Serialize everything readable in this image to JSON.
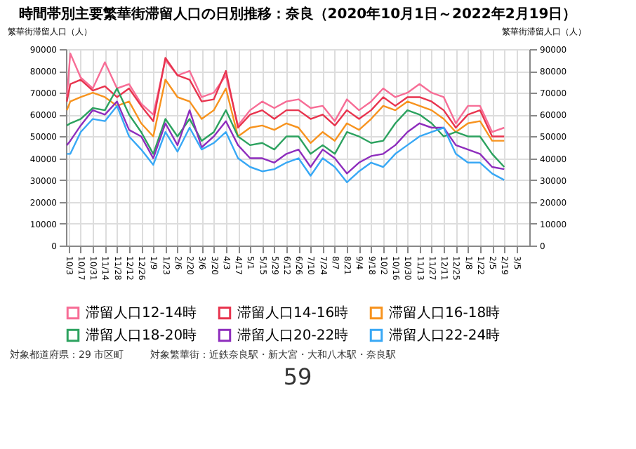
{
  "chart_data": {
    "type": "line",
    "title": "時間帯別主要繁華街滞留人口の日別推移：奈良（2020年10月1日～2022年2月19日）",
    "ylabel": "繁華街滞留人口（人）",
    "y2label": "繁華街滞留人口（人）",
    "x": [
      "2020-10-01",
      "2020-10-05",
      "2020-10-17",
      "2020-10-31",
      "2020-11-14",
      "2020-11-28",
      "2020-12-12",
      "2020-12-26",
      "2021-01-09",
      "2021-01-23",
      "2021-02-06",
      "2021-02-20",
      "2021-03-06",
      "2021-03-20",
      "2021-04-03",
      "2021-04-17",
      "2021-05-01",
      "2021-05-15",
      "2021-05-29",
      "2021-06-12",
      "2021-06-26",
      "2021-07-10",
      "2021-07-24",
      "2021-08-07",
      "2021-08-21",
      "2021-09-04",
      "2021-09-18",
      "2021-10-02",
      "2021-10-16",
      "2021-10-30",
      "2021-11-13",
      "2021-11-27",
      "2021-12-11",
      "2021-12-25",
      "2022-01-08",
      "2022-01-22",
      "2022-02-05",
      "2022-02-19"
    ],
    "series": [
      {
        "name": "滞留人口12-14時",
        "color": "#f76d96",
        "values": [
          68000,
          88000,
          77000,
          72000,
          84000,
          72000,
          74000,
          65000,
          60000,
          85000,
          78000,
          80000,
          68000,
          70000,
          78000,
          55000,
          62000,
          66000,
          63000,
          66000,
          67000,
          63000,
          64000,
          57000,
          67000,
          62000,
          66000,
          72000,
          68000,
          70000,
          74000,
          70000,
          68000,
          56000,
          64000,
          64000,
          52000,
          54000
        ]
      },
      {
        "name": "滞留人口14-16時",
        "color": "#e8344e",
        "values": [
          66000,
          74000,
          76000,
          71000,
          73000,
          68000,
          72000,
          64000,
          57000,
          86000,
          78000,
          76000,
          66000,
          67000,
          80000,
          54000,
          60000,
          62000,
          58000,
          62000,
          62000,
          58000,
          60000,
          55000,
          62000,
          58000,
          62000,
          68000,
          64000,
          68000,
          68000,
          66000,
          62000,
          54000,
          60000,
          62000,
          50000,
          50000
        ]
      },
      {
        "name": "滞留人口16-18時",
        "color": "#f7931e",
        "values": [
          62000,
          66000,
          68000,
          70000,
          68000,
          64000,
          66000,
          56000,
          50000,
          76000,
          68000,
          66000,
          58000,
          62000,
          72000,
          50000,
          54000,
          55000,
          53000,
          56000,
          54000,
          47000,
          52000,
          48000,
          56000,
          53000,
          58000,
          64000,
          62000,
          66000,
          64000,
          62000,
          58000,
          52000,
          56000,
          57000,
          48000,
          48000
        ]
      },
      {
        "name": "滞留人口18-20時",
        "color": "#2ca25f",
        "values": [
          55000,
          56000,
          58000,
          63000,
          62000,
          72000,
          60000,
          52000,
          42000,
          58000,
          50000,
          58000,
          48000,
          52000,
          62000,
          50000,
          46000,
          47000,
          44000,
          50000,
          50000,
          42000,
          46000,
          42000,
          52000,
          50000,
          47000,
          48000,
          56000,
          62000,
          60000,
          56000,
          50000,
          52000,
          50000,
          50000,
          42000,
          36000
        ]
      },
      {
        "name": "滞留人口20-22時",
        "color": "#8e2dbd",
        "values": [
          46000,
          48000,
          55000,
          62000,
          60000,
          66000,
          53000,
          50000,
          40000,
          56000,
          46000,
          62000,
          45000,
          50000,
          57000,
          46000,
          40000,
          40000,
          38000,
          42000,
          44000,
          36000,
          44000,
          40000,
          33000,
          38000,
          41000,
          42000,
          46000,
          52000,
          56000,
          54000,
          54000,
          46000,
          44000,
          42000,
          36000,
          35000
        ]
      },
      {
        "name": "滞留人口22-24時",
        "color": "#38a8f5",
        "values": [
          42000,
          42000,
          52000,
          58000,
          57000,
          64000,
          50000,
          44000,
          37000,
          52000,
          43000,
          54000,
          44000,
          47000,
          52000,
          40000,
          36000,
          34000,
          35000,
          38000,
          40000,
          32000,
          40000,
          36000,
          29000,
          34000,
          38000,
          36000,
          42000,
          46000,
          50000,
          52000,
          54000,
          42000,
          38000,
          38000,
          33000,
          30000
        ]
      }
    ],
    "xlim": [
      "2020-09-30",
      "2022-03-20"
    ],
    "xticks": [
      {
        "value": "2020-10-03",
        "label": "10/3"
      },
      {
        "value": "2020-10-17",
        "label": "10/17"
      },
      {
        "value": "2020-10-31",
        "label": "10/31"
      },
      {
        "value": "2020-11-14",
        "label": "11/14"
      },
      {
        "value": "2020-11-28",
        "label": "11/28"
      },
      {
        "value": "2020-12-12",
        "label": "12/12"
      },
      {
        "value": "2020-12-26",
        "label": "12/26"
      },
      {
        "value": "2021-01-09",
        "label": "1/9"
      },
      {
        "value": "2021-01-23",
        "label": "1/23"
      },
      {
        "value": "2021-02-06",
        "label": "2/6"
      },
      {
        "value": "2021-02-20",
        "label": "2/20"
      },
      {
        "value": "2021-03-06",
        "label": "3/6"
      },
      {
        "value": "2021-03-20",
        "label": "3/20"
      },
      {
        "value": "2021-04-03",
        "label": "4/3"
      },
      {
        "value": "2021-04-17",
        "label": "4/17"
      },
      {
        "value": "2021-05-01",
        "label": "5/1"
      },
      {
        "value": "2021-05-15",
        "label": "5/15"
      },
      {
        "value": "2021-05-29",
        "label": "5/29"
      },
      {
        "value": "2021-06-12",
        "label": "6/12"
      },
      {
        "value": "2021-06-26",
        "label": "6/26"
      },
      {
        "value": "2021-07-10",
        "label": "7/10"
      },
      {
        "value": "2021-07-24",
        "label": "7/24"
      },
      {
        "value": "2021-08-07",
        "label": "8/7"
      },
      {
        "value": "2021-08-21",
        "label": "8/21"
      },
      {
        "value": "2021-09-04",
        "label": "9/4"
      },
      {
        "value": "2021-09-18",
        "label": "9/18"
      },
      {
        "value": "2021-10-02",
        "label": "10/2"
      },
      {
        "value": "2021-10-16",
        "label": "10/16"
      },
      {
        "value": "2021-10-30",
        "label": "10/30"
      },
      {
        "value": "2021-11-13",
        "label": "11/13"
      },
      {
        "value": "2021-11-27",
        "label": "11/27"
      },
      {
        "value": "2021-12-11",
        "label": "12/11"
      },
      {
        "value": "2021-12-25",
        "label": "12/25"
      },
      {
        "value": "2022-01-08",
        "label": "1/8"
      },
      {
        "value": "2022-01-22",
        "label": "1/22"
      },
      {
        "value": "2022-02-05",
        "label": "2/5"
      },
      {
        "value": "2022-02-19",
        "label": "2/19"
      },
      {
        "value": "2022-03-05",
        "label": "3/5"
      }
    ],
    "ylim": [
      0,
      90000
    ],
    "yticks": [
      0,
      10000,
      20000,
      30000,
      40000,
      50000,
      60000,
      70000,
      80000,
      90000
    ],
    "y2lim": [
      0,
      90000
    ],
    "y2ticks": [
      0,
      10000,
      20000,
      30000,
      40000,
      50000,
      60000,
      70000,
      80000,
      90000
    ],
    "grid": true,
    "legend": "bottom",
    "marker": "none",
    "line_style": "solid",
    "annotations": [
      "対象都道府県：29 市区町",
      "対象繁華街：近鉄奈良駅・新大宮・大和八木駅・奈良駅",
      "59"
    ]
  }
}
